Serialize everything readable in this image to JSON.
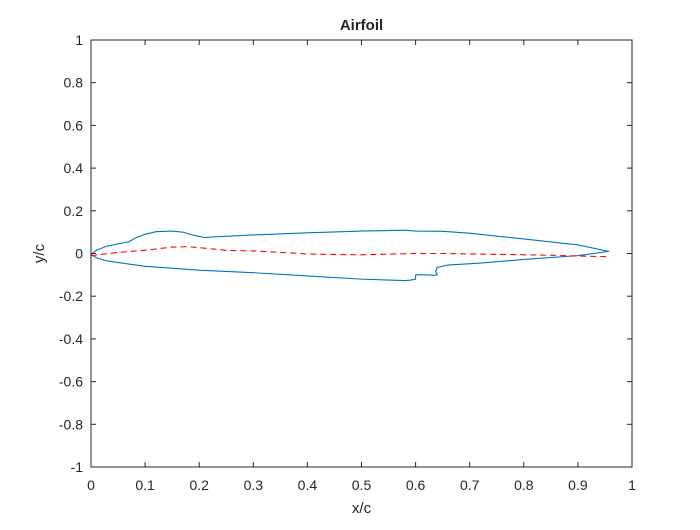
{
  "chart_data": {
    "type": "line",
    "title": "Airfoil",
    "xlabel": "x/c",
    "ylabel": "y/c",
    "xlim": [
      0,
      1
    ],
    "ylim": [
      -1,
      1
    ],
    "xticks": [
      0,
      0.1,
      0.2,
      0.3,
      0.4,
      0.5,
      0.6,
      0.7,
      0.8,
      0.9,
      1
    ],
    "yticks": [
      -1,
      -0.8,
      -0.6,
      -0.4,
      -0.2,
      0,
      0.2,
      0.4,
      0.6,
      0.8,
      1
    ],
    "xtick_labels": [
      "0",
      "0.1",
      "0.2",
      "0.3",
      "0.4",
      "0.5",
      "0.6",
      "0.7",
      "0.8",
      "0.9",
      "1"
    ],
    "ytick_labels": [
      "-1",
      "-0.8",
      "-0.6",
      "-0.4",
      "-0.2",
      "0",
      "0.2",
      "0.4",
      "0.6",
      "0.8",
      "1"
    ],
    "grid": false,
    "box": true,
    "series": [
      {
        "style": "solid",
        "color": "#0072bd",
        "x": [
          0.0,
          0.01,
          0.03,
          0.05,
          0.07,
          0.08,
          0.1,
          0.12,
          0.15,
          0.17,
          0.19,
          0.21,
          0.23,
          0.3,
          0.4,
          0.5,
          0.56,
          0.58,
          0.6,
          0.65,
          0.7,
          0.8,
          0.9,
          0.957,
          0.9,
          0.8,
          0.72,
          0.66,
          0.64,
          0.637,
          0.64,
          0.634,
          0.62,
          0.6,
          0.6,
          0.59,
          0.58,
          0.5,
          0.4,
          0.3,
          0.2,
          0.1,
          0.03,
          0.01,
          0.0
        ],
        "y": [
          -0.005,
          0.015,
          0.035,
          0.045,
          0.055,
          0.07,
          0.09,
          0.102,
          0.105,
          0.1,
          0.085,
          0.075,
          0.078,
          0.087,
          0.097,
          0.105,
          0.108,
          0.109,
          0.105,
          0.104,
          0.095,
          0.068,
          0.04,
          0.01,
          -0.01,
          -0.028,
          -0.045,
          -0.054,
          -0.065,
          -0.085,
          -0.1,
          -0.102,
          -0.1,
          -0.1,
          -0.12,
          -0.125,
          -0.127,
          -0.12,
          -0.105,
          -0.09,
          -0.078,
          -0.06,
          -0.035,
          -0.02,
          -0.005
        ]
      },
      {
        "style": "dashed",
        "color": "#ff0000",
        "x": [
          0.0,
          0.05,
          0.1,
          0.15,
          0.18,
          0.21,
          0.25,
          0.3,
          0.35,
          0.4,
          0.45,
          0.5,
          0.55,
          0.6,
          0.65,
          0.7,
          0.75,
          0.8,
          0.85,
          0.9,
          0.96
        ],
        "y": [
          -0.01,
          0.005,
          0.015,
          0.03,
          0.032,
          0.025,
          0.015,
          0.012,
          0.005,
          -0.002,
          -0.005,
          -0.006,
          -0.003,
          0.0,
          0.0,
          -0.002,
          -0.004,
          -0.006,
          -0.008,
          -0.012,
          -0.015
        ]
      }
    ]
  }
}
